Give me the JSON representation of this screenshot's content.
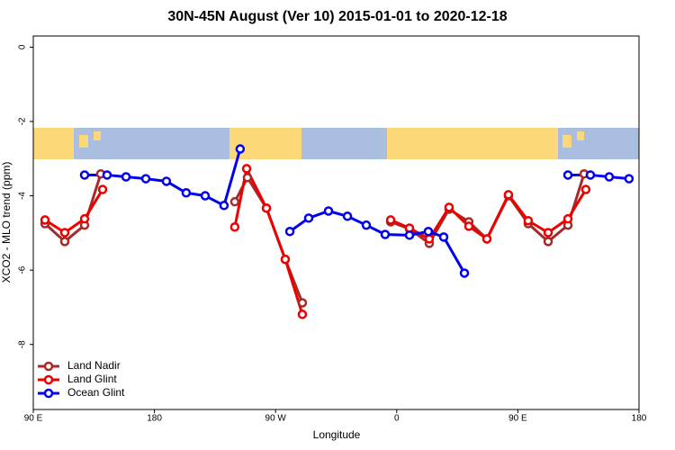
{
  "chart_data": {
    "type": "line",
    "title": "30N-45N August (Ver 10)   2015-01-01 to 2020-12-18",
    "xlabel": "Longitude",
    "ylabel": "XCO2 - MLO trend (ppm)",
    "xlim": [
      90,
      540
    ],
    "xticks": [
      {
        "value": 90,
        "label": "90 E"
      },
      180,
      {
        "value": 270,
        "label": "90 W"
      },
      {
        "value": 360,
        "label": "0"
      },
      {
        "value": 450,
        "label": "90 E"
      },
      {
        "value": 540,
        "label": "180"
      }
    ],
    "ylim": [
      -9.75,
      0.3
    ],
    "yticks": [
      0,
      -2,
      -4,
      -6,
      -8
    ],
    "legend": "bottom-left",
    "series": [
      {
        "name": "Land Nadir",
        "color": "#a52a2a",
        "x": [
          98.7,
          113.4,
          128.1,
          140.1,
          null,
          239.7,
          249.1,
          263.2,
          277.2,
          289.9,
          null,
          355.5,
          369.5,
          384.2,
          398.9,
          413.6,
          427,
          443,
          457.7,
          472.5,
          487.2,
          499.2
        ],
        "values": [
          -4.75,
          -5.23,
          -4.79,
          -3.41,
          null,
          -4.16,
          -3.51,
          -4.33,
          -5.71,
          -6.88,
          null,
          -4.7,
          -4.89,
          -5.28,
          -4.36,
          -4.7,
          -5.16,
          -4.0,
          -4.75,
          -5.23,
          -4.79,
          -3.41
        ]
      },
      {
        "name": "Land Glint",
        "color": "#ee0000",
        "x": [
          98.7,
          113.4,
          128.1,
          141.5,
          null,
          239.7,
          248.5,
          263.2,
          277.2,
          289.9,
          null,
          355.5,
          369.5,
          384.2,
          398.9,
          413.6,
          427,
          443,
          457.7,
          472.5,
          487.2,
          500.5
        ],
        "values": [
          -4.65,
          -4.99,
          -4.62,
          -3.83,
          null,
          -4.84,
          -3.27,
          -4.33,
          -5.71,
          -7.19,
          null,
          -4.65,
          -4.87,
          -5.16,
          -4.31,
          -4.82,
          -5.16,
          -3.97,
          -4.67,
          -4.99,
          -4.62,
          -3.83
        ]
      },
      {
        "name": "Ocean Glint",
        "color": "#0000ee",
        "x": [
          128.1,
          144.8,
          158.9,
          173.6,
          188.9,
          203.6,
          217.7,
          231.7,
          243.7,
          null,
          280.6,
          294.6,
          309.3,
          323.4,
          337.4,
          351.4,
          369.5,
          383.5,
          394.9,
          410.3,
          null,
          487.2,
          503.9,
          517.9,
          532.6
        ],
        "values": [
          -3.44,
          -3.44,
          -3.49,
          -3.54,
          -3.61,
          -3.92,
          -4.0,
          -4.26,
          -2.74,
          null,
          -4.96,
          -4.6,
          -4.41,
          -4.55,
          -4.79,
          -5.04,
          -5.06,
          -4.96,
          -5.11,
          -6.08,
          null,
          -3.44,
          -3.44,
          -3.49,
          -3.54
        ]
      }
    ]
  }
}
